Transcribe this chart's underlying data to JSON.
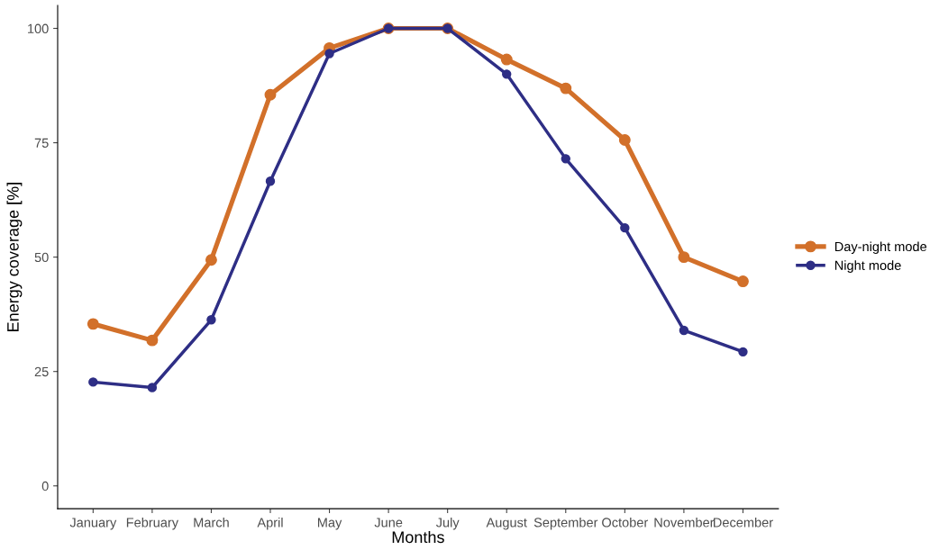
{
  "chart_data": {
    "type": "line",
    "xlabel": "Months",
    "ylabel": "Energy coverage [%]",
    "categories": [
      "January",
      "February",
      "March",
      "April",
      "May",
      "June",
      "July",
      "August",
      "September",
      "October",
      "November",
      "December"
    ],
    "series": [
      {
        "name": "Day-night mode",
        "color": "#d2702a",
        "values": [
          35.4,
          31.8,
          49.4,
          85.5,
          95.7,
          100,
          100,
          93.2,
          86.9,
          75.6,
          50,
          44.7
        ]
      },
      {
        "name": "Night mode",
        "color": "#2e2e85",
        "values": [
          22.7,
          21.5,
          36.3,
          66.6,
          94.5,
          100,
          100,
          90,
          71.5,
          56.4,
          34,
          29.3
        ]
      }
    ],
    "ylim": [
      -5,
      105
    ],
    "yticks": [
      0,
      25,
      50,
      75,
      100
    ],
    "grid": false,
    "legend": "right",
    "marker": "circle",
    "line_style": "solid"
  }
}
